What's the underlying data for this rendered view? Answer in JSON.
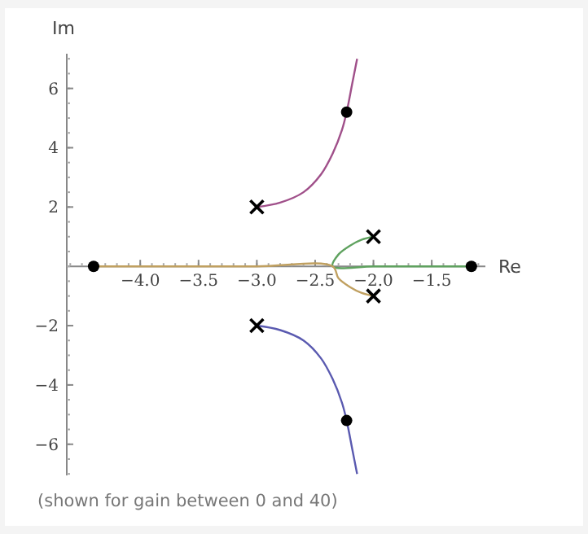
{
  "chart_data": {
    "type": "line",
    "xlabel": "Re",
    "ylabel": "Im",
    "xlim": [
      -4.63,
      -1.04
    ],
    "ylim": [
      -7.05,
      7.17
    ],
    "xticks": [
      {
        "value": -4,
        "label": "−4.0"
      },
      {
        "value": -3.5,
        "label": "−3.5"
      },
      {
        "value": -3,
        "label": "−3.0"
      },
      {
        "value": -2.5,
        "label": "−2.5"
      },
      {
        "value": -2,
        "label": "−2.0"
      },
      {
        "value": -1.5,
        "label": "−1.5"
      }
    ],
    "yticks": [
      {
        "value": -6,
        "label": "−6"
      },
      {
        "value": -4,
        "label": "−4"
      },
      {
        "value": -2,
        "label": "−2"
      },
      2,
      4,
      6
    ],
    "series": [
      {
        "color": "#a0508a",
        "x": [
          -3,
          -2.8,
          -2.6,
          -2.45,
          -2.35,
          -2.27,
          -2.23,
          -2.18,
          -2.14
        ],
        "values": [
          2,
          2.15,
          2.5,
          3.1,
          3.8,
          4.6,
          5.2,
          6.2,
          7.0
        ]
      },
      {
        "color": "#5a5ab0",
        "x": [
          -3,
          -2.8,
          -2.6,
          -2.45,
          -2.35,
          -2.27,
          -2.23,
          -2.18,
          -2.14
        ],
        "values": [
          -2,
          -2.15,
          -2.5,
          -3.1,
          -3.8,
          -4.6,
          -5.2,
          -6.2,
          -7.0
        ]
      },
      {
        "color": "#5fa25f",
        "x": [
          -2,
          -2.1,
          -2.2,
          -2.3,
          -2.35,
          -2.0,
          -1.5,
          -1.16
        ],
        "values": [
          1,
          0.9,
          0.7,
          0.4,
          0,
          0,
          0,
          0
        ]
      },
      {
        "color": "#c0a060",
        "x": [
          -2,
          -2.1,
          -2.2,
          -2.3,
          -2.35,
          -3.0,
          -4.0,
          -4.4
        ],
        "values": [
          -1,
          -0.9,
          -0.7,
          -0.4,
          0,
          0,
          0,
          0
        ]
      },
      {
        "type": "scatter",
        "marker": "cross",
        "color": "#000000",
        "x": [
          -3,
          -3,
          -2,
          -2
        ],
        "values": [
          2,
          -2,
          1,
          -1
        ]
      },
      {
        "type": "scatter",
        "marker": "circle",
        "color": "#000000",
        "x": [
          -2.23,
          -2.23,
          -4.4,
          -1.16
        ],
        "values": [
          5.2,
          -5.2,
          0,
          0
        ]
      }
    ],
    "annotations": [
      "(shown for gain between 0 and 40)"
    ]
  }
}
